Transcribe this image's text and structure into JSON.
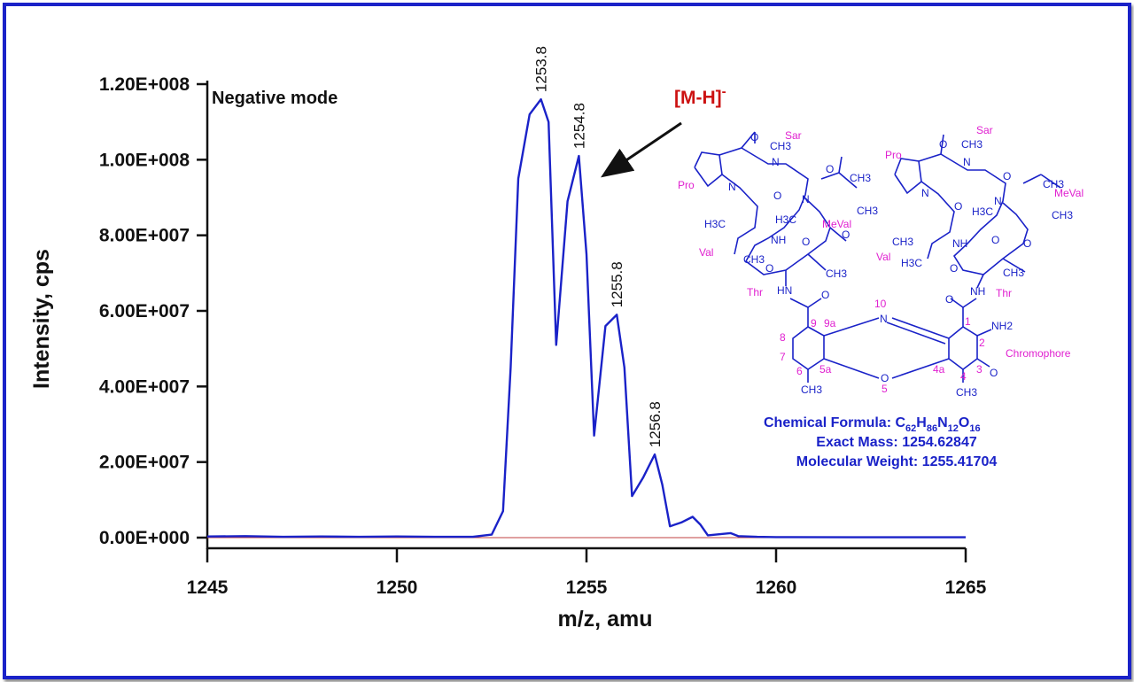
{
  "chart_data": {
    "type": "line",
    "xlabel": "m/z, amu",
    "ylabel": "Intensity, cps",
    "xlim": [
      1245,
      1265
    ],
    "ylim": [
      0,
      120000000
    ],
    "x_ticks": [
      "1245",
      "1250",
      "1255",
      "1260",
      "1265"
    ],
    "y_ticks": [
      "0.00E+000",
      "2.00E+007",
      "4.00E+007",
      "6.00E+007",
      "8.00E+007",
      "1.00E+008",
      "1.20E+008"
    ],
    "annotation_mode": "Negative mode",
    "ion_label_main": "[M-H]",
    "ion_label_sup": "-",
    "series": [
      {
        "color": "#1a22c8",
        "x": [
          1245,
          1246,
          1247,
          1248,
          1249,
          1250,
          1251,
          1252,
          1252.5,
          1252.8,
          1253.0,
          1253.2,
          1253.5,
          1253.8,
          1254.0,
          1254.2,
          1254.5,
          1254.8,
          1255.0,
          1255.2,
          1255.5,
          1255.8,
          1256.0,
          1256.2,
          1256.5,
          1256.8,
          1257.0,
          1257.2,
          1257.5,
          1257.8,
          1258.0,
          1258.2,
          1258.5,
          1258.8,
          1259.0,
          1259.5,
          1260,
          1262,
          1265
        ],
        "y": [
          300000,
          400000,
          200000,
          300000,
          200000,
          300000,
          200000,
          200000,
          800000,
          7000000,
          45000000,
          95000000,
          112000000,
          116000000,
          110000000,
          51000000,
          89000000,
          101000000,
          75000000,
          27000000,
          56000000,
          59000000,
          45000000,
          11000000,
          16000000,
          22000000,
          14000000,
          3000000,
          4000000,
          5500000,
          3500000,
          600000,
          900000,
          1200000,
          400000,
          200000,
          150000,
          100000,
          100000
        ]
      },
      {
        "color": "#c04040",
        "x": [
          1245,
          1265
        ],
        "y": [
          0,
          0
        ]
      }
    ],
    "peak_labels": [
      {
        "x": 1253.8,
        "y": 116000000,
        "text": "1253.8"
      },
      {
        "x": 1254.8,
        "y": 101000000,
        "text": "1254.8"
      },
      {
        "x": 1255.8,
        "y": 59000000,
        "text": "1255.8"
      },
      {
        "x": 1256.8,
        "y": 22000000,
        "text": "1256.8"
      }
    ]
  },
  "structure": {
    "labels_pink": {
      "sar_left": "Sar",
      "sar_right": "Sar",
      "pro_left": "Pro",
      "pro_right": "Pro",
      "meval_left": "MeVal",
      "meval_right": "MeVal",
      "val_left": "Val",
      "val_right": "Val",
      "thr_left": "Thr",
      "thr_right": "Thr",
      "chromophore": "Chromophore",
      "n1": "1",
      "n2": "2",
      "n3": "3",
      "n4": "4",
      "n4a": "4a",
      "n5": "5",
      "n5a": "5a",
      "n6": "6",
      "n7": "7",
      "n8": "8",
      "n9": "9",
      "n9a": "9a",
      "n10": "10"
    },
    "atoms": {
      "O": "O",
      "N": "N",
      "NH": "NH",
      "HN": "HN",
      "CH3": "CH3",
      "H3C": "H3C",
      "NH2": "NH2"
    },
    "info": {
      "formula_prefix": "Chemical Formula: C",
      "formula_c": "62",
      "formula_h": "86",
      "formula_n": "12",
      "formula_o": "16",
      "exact_mass": "Exact Mass: 1254.62847",
      "molecular_weight": "Molecular Weight: 1255.41704"
    }
  }
}
